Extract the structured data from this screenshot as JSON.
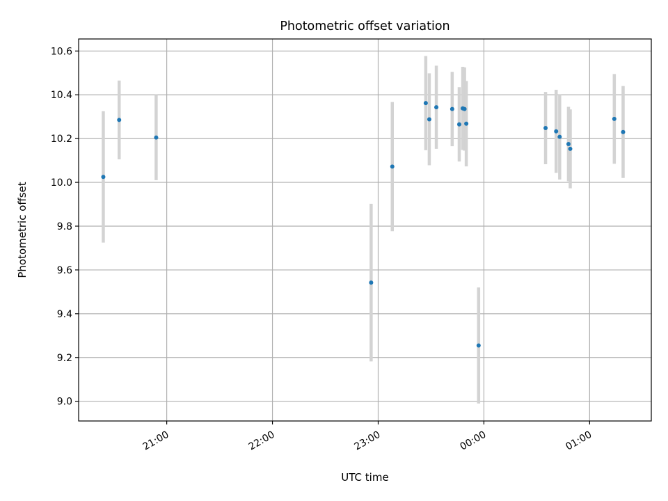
{
  "chart_data": {
    "type": "scatter",
    "title": "Photometric offset variation",
    "xlabel": "UTC time",
    "ylabel": "Photometric offset",
    "x_axis": {
      "type": "time",
      "range": [
        "20:10",
        "01:35"
      ],
      "ticks": [
        "21:00",
        "22:00",
        "23:00",
        "00:00",
        "01:00"
      ]
    },
    "y_axis": {
      "range": [
        8.91,
        10.655
      ],
      "ticks": [
        "9.0",
        "9.2",
        "9.4",
        "9.6",
        "9.8",
        "10.0",
        "10.2",
        "10.4",
        "10.6"
      ]
    },
    "grid": true,
    "colors": {
      "marker": "#1f77b4",
      "errorbar": "#d3d3d3",
      "grid": "#b0b0b0"
    },
    "points": [
      {
        "t": "20:24",
        "y": 10.025,
        "err": 0.3
      },
      {
        "t": "20:33",
        "y": 10.285,
        "err": 0.18
      },
      {
        "t": "20:54",
        "y": 10.205,
        "err": 0.195
      },
      {
        "t": "22:56",
        "y": 9.542,
        "err": 0.36
      },
      {
        "t": "23:08",
        "y": 10.072,
        "err": 0.295
      },
      {
        "t": "23:27",
        "y": 10.362,
        "err": 0.215
      },
      {
        "t": "23:29",
        "y": 10.288,
        "err": 0.21
      },
      {
        "t": "23:33",
        "y": 10.343,
        "err": 0.19
      },
      {
        "t": "23:42",
        "y": 10.335,
        "err": 0.17
      },
      {
        "t": "23:46",
        "y": 10.265,
        "err": 0.17
      },
      {
        "t": "23:48",
        "y": 10.338,
        "err": 0.19
      },
      {
        "t": "23:49",
        "y": 10.335,
        "err": 0.19
      },
      {
        "t": "23:50",
        "y": 10.268,
        "err": 0.195
      },
      {
        "t": "23:57",
        "y": 9.255,
        "err": 0.265
      },
      {
        "t": "00:35",
        "y": 10.248,
        "err": 0.165
      },
      {
        "t": "00:41",
        "y": 10.233,
        "err": 0.19
      },
      {
        "t": "00:43",
        "y": 10.208,
        "err": 0.195
      },
      {
        "t": "00:48",
        "y": 10.175,
        "err": 0.17
      },
      {
        "t": "00:49",
        "y": 10.153,
        "err": 0.18
      },
      {
        "t": "01:14",
        "y": 10.29,
        "err": 0.205
      },
      {
        "t": "01:19",
        "y": 10.23,
        "err": 0.21
      }
    ]
  }
}
